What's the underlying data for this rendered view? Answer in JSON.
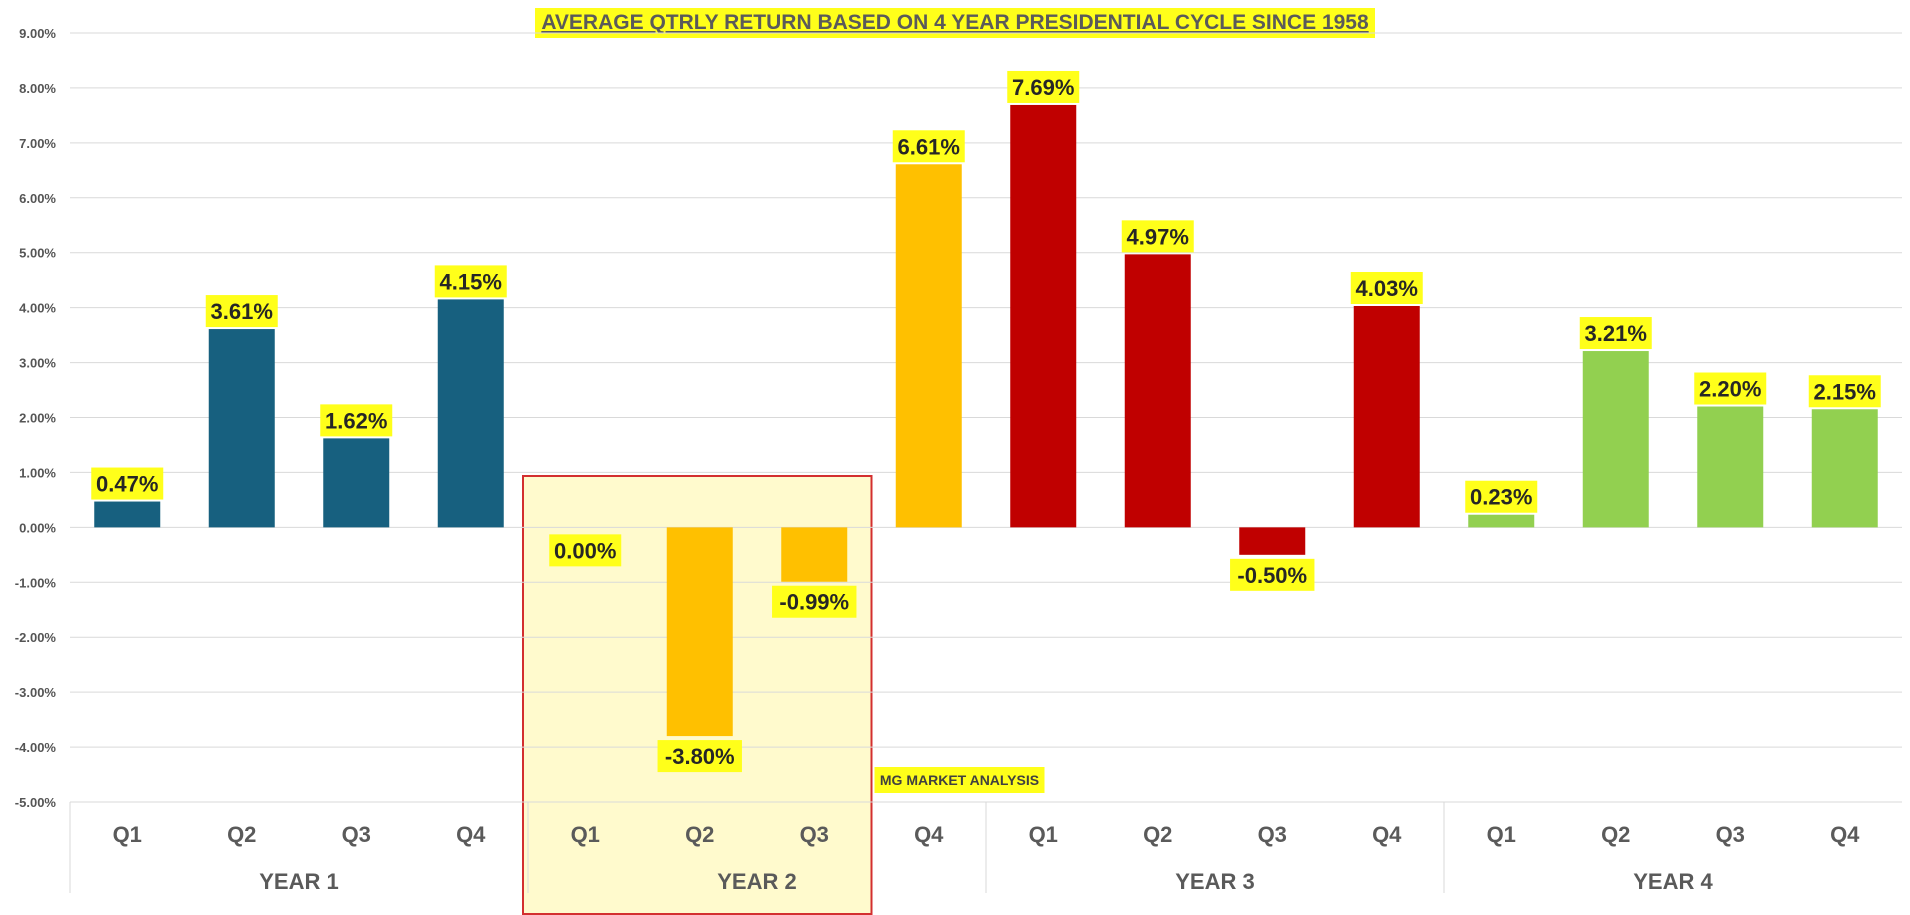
{
  "chart_data": {
    "type": "bar",
    "title": "AVERAGE QTRLY RETURN BASED ON 4 YEAR PRESIDENTIAL CYCLE SINCE 1958",
    "ylim": [
      -5,
      9
    ],
    "y_ticks": [
      "9.00%",
      "8.00%",
      "7.00%",
      "6.00%",
      "5.00%",
      "4.00%",
      "3.00%",
      "2.00%",
      "1.00%",
      "0.00%",
      "-1.00%",
      "-2.00%",
      "-3.00%",
      "-4.00%",
      "-5.00%"
    ],
    "y_tick_values": [
      9,
      8,
      7,
      6,
      5,
      4,
      3,
      2,
      1,
      0,
      -1,
      -2,
      -3,
      -4,
      -5
    ],
    "grid": true,
    "groups": [
      {
        "name": "YEAR 1",
        "color": "#17607f",
        "quarters": [
          "Q1",
          "Q2",
          "Q3",
          "Q4"
        ],
        "values": [
          0.47,
          3.61,
          1.62,
          4.15
        ],
        "labels": [
          "0.47%",
          "3.61%",
          "1.62%",
          "4.15%"
        ]
      },
      {
        "name": "YEAR 2",
        "color": "#ffc000",
        "quarters": [
          "Q1",
          "Q2",
          "Q3",
          "Q4"
        ],
        "values": [
          0.0,
          -3.8,
          -0.99,
          6.61
        ],
        "labels": [
          "0.00%",
          "-3.80%",
          "-0.99%",
          "6.61%"
        ]
      },
      {
        "name": "YEAR 3",
        "color": "#c00000",
        "quarters": [
          "Q1",
          "Q2",
          "Q3",
          "Q4"
        ],
        "values": [
          7.69,
          4.97,
          -0.5,
          4.03
        ],
        "labels": [
          "7.69%",
          "4.97%",
          "-0.50%",
          "4.03%"
        ]
      },
      {
        "name": "YEAR 4",
        "color": "#92d050",
        "quarters": [
          "Q1",
          "Q2",
          "Q3",
          "Q4"
        ],
        "values": [
          0.23,
          3.21,
          2.2,
          2.15
        ],
        "labels": [
          "0.23%",
          "3.21%",
          "2.20%",
          "2.15%"
        ]
      }
    ],
    "highlight": {
      "group": "YEAR 2",
      "quarters": [
        "Q1",
        "Q2",
        "Q3"
      ],
      "fill": "#fffacd",
      "border": "#d32f2f"
    },
    "label_background": "#ffff1a",
    "watermark": "MG MARKET ANALYSIS"
  }
}
